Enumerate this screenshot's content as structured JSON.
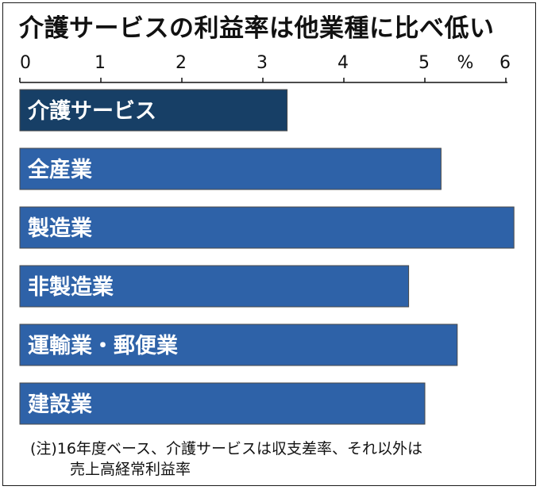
{
  "title": "介護サービスの利益率は他業種に比べ低い",
  "note": {
    "line1": "(注)16年度ベース、介護サービスは収支差率、それ以外は",
    "line2": "売上高経常利益率"
  },
  "colors": {
    "highlight_bar": "#173f66",
    "bar": "#2e62a8",
    "bar_edge": "#4a4a4a",
    "axis": "#111111"
  },
  "chart_data": {
    "type": "bar",
    "orientation": "horizontal",
    "title": "介護サービスの利益率は他業種に比べ低い",
    "unit": "%",
    "xlim": [
      0,
      6
    ],
    "ticks": [
      0,
      1,
      2,
      3,
      4,
      5,
      6
    ],
    "tick_labels": [
      "0",
      "1",
      "2",
      "3",
      "4",
      "5",
      "6"
    ],
    "grid": false,
    "categories": [
      "介護サービス",
      "全産業",
      "製造業",
      "非製造業",
      "運輸業・郵便業",
      "建設業"
    ],
    "values": [
      3.3,
      5.2,
      6.1,
      4.8,
      5.4,
      5.0
    ],
    "highlighted": "介護サービス"
  }
}
